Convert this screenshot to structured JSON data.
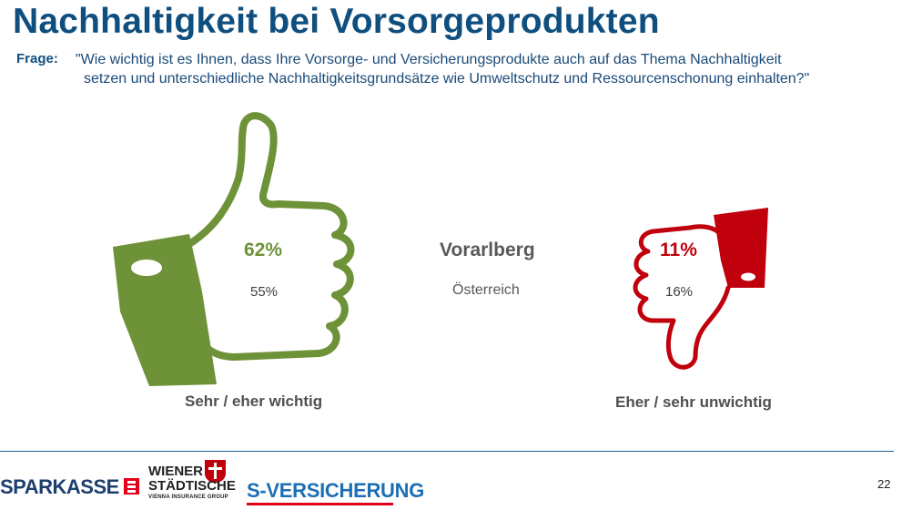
{
  "title": "Nachhaltigkeit bei Vorsorgeprodukten",
  "question": {
    "label": "Frage:",
    "line1": "\"Wie wichtig ist es Ihnen, dass Ihre Vorsorge- und Versicherungsprodukte auch auf das Thema Nachhaltigkeit",
    "line2": "setzen und unterschiedliche Nachhaltigkeitsgrundsätze wie Umweltschutz und Ressourcenschonung einhalten?\""
  },
  "comparison": {
    "primary_region": "Vorarlberg",
    "secondary_region": "Österreich"
  },
  "items": {
    "wichtig": {
      "label": "Sehr / eher wichtig",
      "value_primary": "62%",
      "value_secondary": "55%",
      "color": "#6e9238"
    },
    "unwichtig": {
      "label": "Eher / sehr unwichtig",
      "value_primary": "11%",
      "value_secondary": "16%",
      "color": "#c0000c"
    }
  },
  "logos": {
    "sparkasse": "SPARKASSE",
    "wiener_line1": "WIENER",
    "wiener_line2": "STÄDTISCHE",
    "wiener_sub": "VIENNA INSURANCE GROUP",
    "s_versicherung": "S-VERSICHERUNG"
  },
  "page_number": "22",
  "colors": {
    "title": "#0f4f7f",
    "green": "#6e9238",
    "red": "#c0000c"
  }
}
